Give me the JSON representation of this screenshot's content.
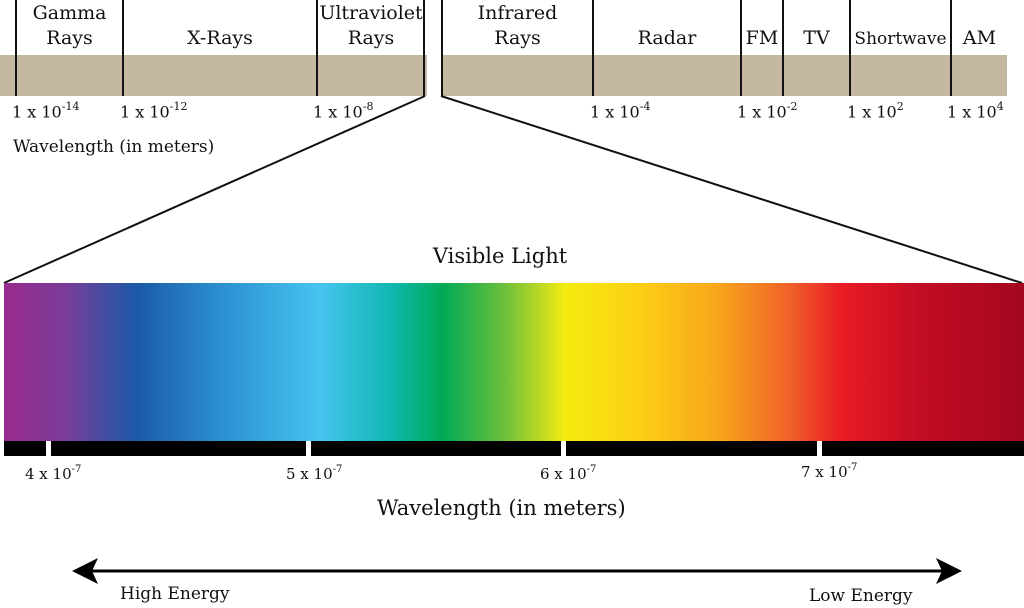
{
  "bands": [
    {
      "key": "gamma",
      "line1": "Gamma",
      "line2": "Rays"
    },
    {
      "key": "xray",
      "line1": "X-Rays",
      "line2": ""
    },
    {
      "key": "uv",
      "line1": "Ultraviolet",
      "line2": "Rays"
    },
    {
      "key": "ir",
      "line1": "Infrared",
      "line2": "Rays"
    },
    {
      "key": "radar",
      "line1": "Radar",
      "line2": ""
    },
    {
      "key": "fm",
      "line1": "FM",
      "line2": ""
    },
    {
      "key": "tv",
      "line1": "TV",
      "line2": ""
    },
    {
      "key": "shortwave",
      "line1": "Shortwave",
      "line2": ""
    },
    {
      "key": "am",
      "line1": "AM",
      "line2": ""
    }
  ],
  "wavelength_ticks": [
    {
      "base": "1 x 10",
      "exp": "-14"
    },
    {
      "base": "1 x 10",
      "exp": "-12"
    },
    {
      "base": "1 x 10",
      "exp": "-8"
    },
    {
      "base": "1 x 10",
      "exp": "-4"
    },
    {
      "base": "1 x 10",
      "exp": "-2"
    },
    {
      "base": "1 x 10",
      "exp": "2"
    },
    {
      "base": "1 x 10",
      "exp": "4"
    }
  ],
  "top_axis_label": "Wavelength (in meters)",
  "visible_title": "Visible Light",
  "visible_ticks": [
    {
      "base": "4 x 10",
      "exp": "-7"
    },
    {
      "base": "5 x 10",
      "exp": "-7"
    },
    {
      "base": "6 x 10",
      "exp": "-7"
    },
    {
      "base": "7 x 10",
      "exp": "-7"
    }
  ],
  "bottom_axis_label": "Wavelength (in meters)",
  "energy": {
    "high": "High Energy",
    "low": "Low Energy"
  },
  "colors": {
    "band": "#c4b8a1",
    "spectrum": [
      "#9a2a8e",
      "#1b5aa8",
      "#46c4f0",
      "#00aa55",
      "#f4ec10",
      "#f9a61c",
      "#ea1c24",
      "#a3071f"
    ]
  }
}
